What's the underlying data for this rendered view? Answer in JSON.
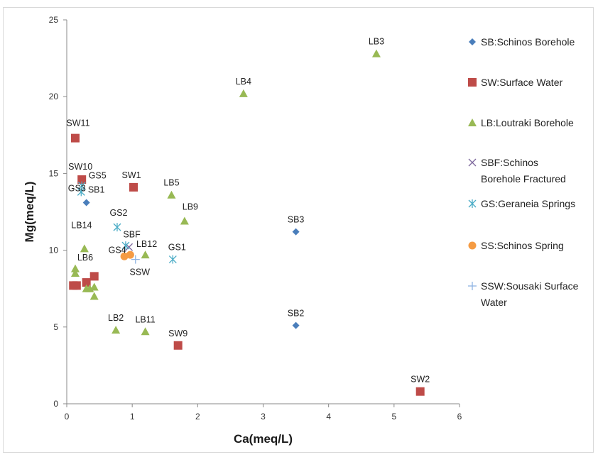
{
  "chart_data": {
    "type": "scatter",
    "xlabel": "Ca(meq/L)",
    "ylabel": "Mg(meq/L)",
    "xlim": [
      0,
      6
    ],
    "ylim": [
      0,
      25
    ],
    "xticks": [
      0,
      1,
      2,
      3,
      4,
      5,
      6
    ],
    "yticks": [
      0,
      5,
      10,
      15,
      20,
      25
    ],
    "grid": false,
    "legend_position": "right",
    "series": [
      {
        "name": "SB:Schinos Borehole",
        "legend_lines": [
          "SB:Schinos Borehole"
        ],
        "marker": "diamond",
        "color": "#4a7ebb",
        "points": [
          {
            "x": 0.3,
            "y": 13.1,
            "label": "SB1"
          },
          {
            "x": 3.5,
            "y": 11.2,
            "label": "SB3"
          },
          {
            "x": 3.5,
            "y": 5.1,
            "label": "SB2"
          }
        ]
      },
      {
        "name": "SW:Surface Water",
        "legend_lines": [
          "SW:Surface Water"
        ],
        "marker": "square",
        "color": "#be4b48",
        "points": [
          {
            "x": 0.13,
            "y": 17.3,
            "label": "SW11"
          },
          {
            "x": 0.23,
            "y": 14.6,
            "label": "SW10"
          },
          {
            "x": 1.02,
            "y": 14.1,
            "label": "SW1"
          },
          {
            "x": 0.42,
            "y": 8.3,
            "label": ""
          },
          {
            "x": 0.1,
            "y": 7.7,
            "label": ""
          },
          {
            "x": 0.15,
            "y": 7.7,
            "label": ""
          },
          {
            "x": 0.3,
            "y": 7.9,
            "label": ""
          },
          {
            "x": 1.7,
            "y": 3.8,
            "label": "SW9"
          },
          {
            "x": 5.4,
            "y": 0.8,
            "label": "SW2"
          }
        ]
      },
      {
        "name": "LB:Loutraki Borehole",
        "legend_lines": [
          "LB:Loutraki Borehole"
        ],
        "marker": "triangle",
        "color": "#98b954",
        "points": [
          {
            "x": 4.73,
            "y": 22.8,
            "label": "LB3"
          },
          {
            "x": 2.7,
            "y": 20.2,
            "label": "LB4"
          },
          {
            "x": 1.6,
            "y": 13.6,
            "label": "LB5"
          },
          {
            "x": 1.8,
            "y": 11.9,
            "label": "LB9"
          },
          {
            "x": 0.27,
            "y": 10.1,
            "label": "LB14"
          },
          {
            "x": 1.2,
            "y": 9.7,
            "label": "LB12"
          },
          {
            "x": 0.13,
            "y": 8.8,
            "label": ""
          },
          {
            "x": 0.13,
            "y": 8.5,
            "label": "LB6"
          },
          {
            "x": 0.3,
            "y": 7.5,
            "label": ""
          },
          {
            "x": 0.35,
            "y": 7.5,
            "label": ""
          },
          {
            "x": 0.42,
            "y": 7.6,
            "label": ""
          },
          {
            "x": 0.42,
            "y": 7.0,
            "label": ""
          },
          {
            "x": 0.75,
            "y": 4.8,
            "label": "LB2"
          },
          {
            "x": 1.2,
            "y": 4.7,
            "label": "LB11"
          }
        ]
      },
      {
        "name": "SBF:Schinos Borehole Fractured",
        "legend_lines": [
          "SBF:Schinos",
          "Borehole Fractured"
        ],
        "marker": "x",
        "color": "#7f6a9e",
        "points": [
          {
            "x": 0.95,
            "y": 10.2,
            "label": "SBF"
          }
        ]
      },
      {
        "name": "GS:Geraneia Springs",
        "legend_lines": [
          "GS:Geraneia Springs"
        ],
        "marker": "asterisk",
        "color": "#4bacc6",
        "points": [
          {
            "x": 0.23,
            "y": 14.2,
            "label": "GS5"
          },
          {
            "x": 0.22,
            "y": 13.8,
            "label": "GS3"
          },
          {
            "x": 0.77,
            "y": 11.5,
            "label": "GS2"
          },
          {
            "x": 0.9,
            "y": 10.3,
            "label": ""
          },
          {
            "x": 1.62,
            "y": 9.4,
            "label": "GS1"
          }
        ]
      },
      {
        "name": "SS:Schinos Spring",
        "legend_lines": [
          "SS:Schinos Spring"
        ],
        "marker": "circle",
        "color": "#f59b43",
        "points": [
          {
            "x": 0.88,
            "y": 9.6,
            "label": "GS4"
          },
          {
            "x": 0.97,
            "y": 9.7,
            "label": ""
          }
        ]
      },
      {
        "name": "SSW:Sousaki Surface Water",
        "legend_lines": [
          "SSW:Sousaki Surface",
          "Water"
        ],
        "marker": "plus",
        "color": "#8eb4e3",
        "points": [
          {
            "x": 1.05,
            "y": 9.4,
            "label": "SSW"
          }
        ]
      }
    ]
  }
}
